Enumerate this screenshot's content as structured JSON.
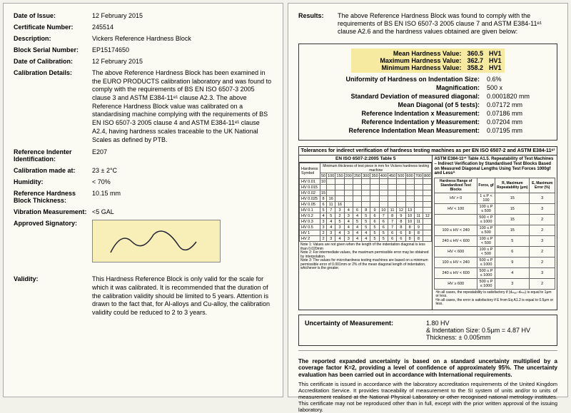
{
  "left": {
    "rows": [
      {
        "label": "Date of Issue:",
        "value": "12 February 2015"
      },
      {
        "label": "Certificate Number:",
        "value": "245514"
      },
      {
        "label": "Description:",
        "value": "Vickers Reference Hardness Block"
      },
      {
        "label": "Block Serial Number:",
        "value": "EP15174650"
      },
      {
        "label": "Date of Calibration:",
        "value": "12 February 2015"
      }
    ],
    "calibration_label": "Calibration Details:",
    "calibration_text": "The above Reference Hardness Block has been examined in the EURO PRODUCTS calibration laboratory and was found to comply with the requirements of BS EN ISO 6507-3 2005 clause 3 and ASTM E384-11ᵉ¹ clause A2.3. The above Reference Hardness Block value was calibrated on a standardising machine complying with the requirements of BS EN ISO 6507-3 2005 clause 4 and ASTM E384-11ᵉ¹ clause A2.4, having hardness scales traceable to the UK National Scales as defined by PTB.",
    "rows2": [
      {
        "label": "Reference Indenter Identification:",
        "value": "E207"
      },
      {
        "label": "Calibration made at:",
        "value": "23 ± 2°C"
      },
      {
        "label": "Humidity:",
        "value": "< 70%"
      },
      {
        "label": "Reference Hardness Block Thickness:",
        "value": "10.15 mm"
      },
      {
        "label": "Vibration Measurement:",
        "value": "<5 GAL"
      }
    ],
    "signatory_label": "Approved Signatory:",
    "validity_label": "Validity:",
    "validity_text": "This Hardness Reference Block is only valid for the scale for which it was calibrated. It is recommended that the duration of the calibration validity should be limited to 5 years. Attention is drawn to the fact that, for Al-alloys and Cu-alloy, the calibration validity could be reduced to 2 to 3 years."
  },
  "right": {
    "results_label": "Results:",
    "results_text": "The above Reference Hardness Block was found to comply with the requirements of BS EN ISO 6507-3 2005 clause 7 and ASTM E384-11ᵉ¹ clause A2.6 and the hardness values obtained are given below:",
    "hardness": {
      "mean": {
        "label": "Mean Hardness Value:",
        "val": "360.5",
        "unit": "HV1"
      },
      "max": {
        "label": "Maximum Hardness Value:",
        "val": "362.7",
        "unit": "HV1"
      },
      "min": {
        "label": "Minimum Hardness Value:",
        "val": "358.2",
        "unit": "HV1"
      }
    },
    "metrics": [
      {
        "k": "Uniformity of Hardness on Indentation Size:",
        "v": "0.6%"
      },
      {
        "k": "Magnification:",
        "v": "500 x"
      },
      {
        "k": "Standard Deviation of measured diagonal:",
        "v": "0.0001820 mm"
      },
      {
        "k": "Mean Diagonal (of 5 tests):",
        "v": "0.07172 mm"
      },
      {
        "k": "Reference Indentation x Measurement:",
        "v": "0.07186 mm"
      },
      {
        "k": "Reference Indentation y Measurement:",
        "v": "0.07204 mm"
      },
      {
        "k": "Reference Indentation Mean Measurement:",
        "v": "0.07195 mm"
      }
    ],
    "tolerances": {
      "title": "Tolerances for indirect verification of hardness testing machines as per EN ISO 6507-2 and ASTM E384-11ᵉ¹",
      "left_title": "EN ISO 6507-2:2005 Table 5",
      "left_sub": "Minimum thickness of test piece in mm for Vickers hardness testing machine",
      "hardness_col": "Hardness Symbol",
      "rows": [
        {
          "s": "HV 0.01",
          "c": [
            "10",
            "",
            "",
            "",
            "",
            "",
            "",
            "",
            "",
            "",
            "",
            "",
            ""
          ]
        },
        {
          "s": "HV 0.015",
          "c": [
            "",
            "",
            "",
            "",
            "",
            "",
            "",
            "",
            "",
            "",
            "",
            "",
            ""
          ]
        },
        {
          "s": "HV 0.02",
          "c": [
            "15",
            "",
            "",
            "",
            "",
            "",
            "",
            "",
            "",
            "",
            "",
            "",
            ""
          ]
        },
        {
          "s": "HV 0.025",
          "c": [
            "8",
            "16",
            "",
            "",
            "",
            "",
            "",
            "",
            "",
            "",
            "",
            "",
            ""
          ]
        },
        {
          "s": "HV 0.05",
          "c": [
            "6",
            "11",
            "16",
            "",
            "",
            "",
            "",
            "",
            "",
            "",
            "",
            "",
            ""
          ]
        },
        {
          "s": "HV 0.1",
          "c": [
            "5",
            "7",
            "3",
            "4",
            "6",
            "8",
            "9",
            "10",
            "11",
            "12",
            "13",
            "",
            ""
          ]
        },
        {
          "s": "HV 0.2",
          "c": [
            "4",
            "5",
            "2",
            "3",
            "4",
            "5",
            "6",
            "7",
            "8",
            "9",
            "10",
            "11",
            "12"
          ]
        },
        {
          "s": "HV 0.3",
          "c": [
            "3",
            "4",
            "5",
            "4",
            "5",
            "5",
            "6",
            "6",
            "7",
            "8",
            "10",
            "11",
            ""
          ]
        },
        {
          "s": "HV 0.5",
          "c": [
            "3",
            "4",
            "3",
            "4",
            "4",
            "5",
            "5",
            "6",
            "7",
            "8",
            "8",
            "9",
            ""
          ]
        },
        {
          "s": "HV 1",
          "c": [
            "2",
            "3",
            "4",
            "3",
            "4",
            "4",
            "5",
            "5",
            "6",
            "6",
            "8",
            "8",
            ""
          ]
        },
        {
          "s": "HV 2",
          "c": [
            "2",
            "3",
            "4",
            "3",
            "4",
            "4",
            "5",
            "5",
            "6",
            "6",
            "8",
            "8",
            ""
          ]
        }
      ],
      "head_nums": [
        "50",
        "100",
        "150",
        "200",
        "250",
        "300",
        "350",
        "400",
        "450",
        "500",
        "600",
        "700",
        "800"
      ],
      "notes": "Note 1: Values are not given when the length of the indentation diagonal is less than 0.020mm\nNote 2: For intermediate values, the maximum permissible error may be obtained by interpolation.\nNote 3: The values for microhardness testing machines are based on a minimum permissible error of 0.001mm or 2% of the mean diagonal length of indentation, whichever is the greater.",
      "right_title": "ASTM E384-11ᵉ¹ Table A1.5. Repeatability of Test Machines – Indirect Verification by Standardised Test Blocks Based on Measured Diagonal Lengths Using Test Forces 1000gf and Lessᴬ",
      "right_head": [
        "Hardness Range of Standardized Test Blocks",
        "Force, gf",
        "R, Maximum Repeatability (μm)",
        "E, Maximum Error (%)"
      ],
      "right_rows": [
        [
          "HV > 0",
          "1 ≤ P < 100",
          "15",
          "3"
        ],
        [
          "HV < 100",
          "100 ≤ P ≤ 500",
          "15",
          "3"
        ],
        [
          "",
          "500 < P ≤ 1000",
          "15",
          "2"
        ],
        [
          "100 ≤ HV < 240",
          "100 ≤ P ≤ 500",
          "15",
          "2"
        ],
        [
          "240 ≤ HV < 600",
          "100 ≤ P < 500",
          "5",
          "3"
        ],
        [
          "HV < 600",
          "100 ≤ P < 500",
          "6",
          "2"
        ],
        [
          "100 ≤ HV < 240",
          "500 ≤ P ≤ 1000",
          "9",
          "2"
        ],
        [
          "240 ≤ HV < 600",
          "500 ≤ P ≤ 1000",
          "4",
          "3"
        ],
        [
          "HV ≥ 600",
          "500 ≤ P ≤ 1000",
          "3",
          "2"
        ]
      ],
      "right_foot": "ᴬIn all cases, the repeatability is satisfactory if (dₘₐₓ−dₘᵢₙ) is equal to 1μm or less.\nᴮIn all cases, the error is satisfactory if E from Eq A1.2 is equal to 0.5μm or less."
    },
    "uncertainty": {
      "label": "Uncertainty of Measurement:",
      "line1": "1.80 HV",
      "line2": "& Indentation Size: 0.5μm = 4.87 HV",
      "line3": "Thickness: ± 0.005mm"
    },
    "footer_bold": "The reported expanded uncertainty is based on a standard uncertainty multiplied by a coverage factor K=2, providing a level of confidence of approximately 95%. The uncertainty evaluation has been carried out in accordance with International requirements.",
    "footer_text": "This certificate is issued in accordance with the laboratory accreditation requirements of the United Kingdom Accreditation Service. It provides traceability of measurement to the SI system of units and/or to units of measurement realised at the National Physical Laboratory or other recognised national metrology institutes. This certificate may not be reproduced other than in full, except with the prior written approval of the issuing laboratory."
  }
}
